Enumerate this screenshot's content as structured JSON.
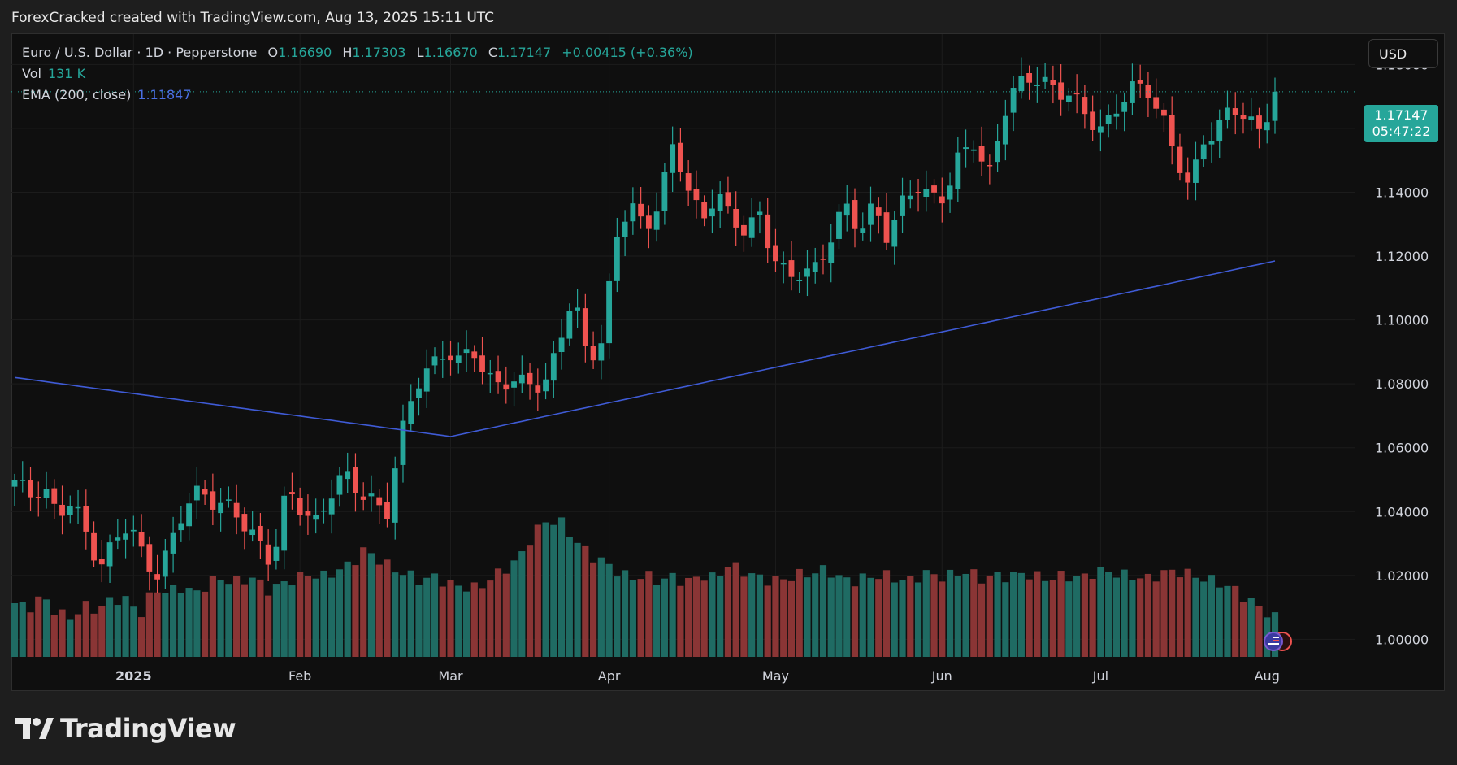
{
  "header": {
    "title": "ForexCracked created with TradingView.com, Aug 13, 2025 15:11 UTC"
  },
  "legend": {
    "symbol": "Euro / U.S. Dollar · 1D · Pepperstone",
    "open_label": "O",
    "open": "1.16690",
    "high_label": "H",
    "high": "1.17303",
    "low_label": "L",
    "low": "1.16670",
    "close_label": "C",
    "close": "1.17147",
    "change": "+0.00415 (+0.36%)",
    "vol_label": "Vol",
    "vol_value": "131 K",
    "ema_label": "EMA (200, close)",
    "ema_value": "1.11847"
  },
  "currency_button": "USD",
  "price_tag": {
    "price": "1.17147",
    "countdown": "05:47:22"
  },
  "brand": {
    "name": "TradingView"
  },
  "colors": {
    "up": "#26a69a",
    "down": "#ef5350",
    "vol_up": "#1f6b63",
    "vol_down": "#8a3535",
    "ema": "#3f5bd6",
    "grid": "#1c1c1c",
    "axis_text": "#d1d4dc",
    "background": "#0f0f0f"
  },
  "chart_data": {
    "type": "candlestick",
    "title": "Euro / U.S. Dollar · 1D · Pepperstone",
    "y_axis_ticks": [
      "1.18000",
      "1.16000",
      "1.14000",
      "1.12000",
      "1.10000",
      "1.08000",
      "1.06000",
      "1.04000",
      "1.02000",
      "1.00000"
    ],
    "y_tick_values": [
      1.18,
      1.16,
      1.14,
      1.12,
      1.1,
      1.08,
      1.06,
      1.04,
      1.02,
      1.0
    ],
    "ylim": [
      0.9945,
      1.1895
    ],
    "x_axis_ticks": [
      "2025",
      "Feb",
      "Mar",
      "Apr",
      "May",
      "Jun",
      "Jul",
      "Aug"
    ],
    "x_tick_bar_index": [
      15,
      36,
      55,
      75,
      96,
      117,
      137,
      158
    ],
    "last_price": 1.17147,
    "ohlc_anchor_closes": [
      1.048,
      1.045,
      1.05,
      1.038,
      1.042,
      1.033,
      1.025,
      1.03,
      1.035,
      1.026,
      1.022,
      1.03,
      1.041,
      1.048,
      1.044,
      1.04,
      1.035,
      1.032,
      1.025,
      1.045,
      1.04,
      1.038,
      1.046,
      1.05,
      1.046,
      1.045,
      1.04,
      1.062,
      1.08,
      1.087,
      1.09,
      1.085,
      1.092,
      1.083,
      1.08,
      1.078,
      1.082,
      1.08,
      1.093,
      1.105,
      1.09,
      1.094,
      1.125,
      1.135,
      1.13,
      1.138,
      1.154,
      1.14,
      1.133,
      1.141,
      1.13,
      1.127,
      1.135,
      1.12,
      1.111,
      1.115,
      1.118,
      1.126,
      1.134,
      1.128,
      1.138,
      1.125,
      1.135,
      1.143,
      1.14,
      1.138,
      1.15,
      1.157,
      1.146,
      1.163,
      1.172,
      1.178,
      1.175,
      1.17,
      1.168,
      1.165,
      1.16,
      1.165,
      1.172,
      1.175,
      1.165,
      1.15,
      1.141,
      1.158,
      1.16,
      1.165,
      1.163,
      1.161,
      1.17147
    ],
    "volume_pattern": [
      55,
      50,
      62,
      45,
      40,
      52,
      48,
      60,
      58,
      44,
      70,
      66,
      72,
      65,
      78,
      80,
      76,
      82,
      68,
      74,
      80,
      85,
      82,
      88,
      95,
      110,
      100,
      90,
      85,
      78,
      82,
      75,
      72,
      70,
      80,
      90,
      100,
      125,
      140,
      138,
      120,
      105,
      98,
      88,
      80,
      84,
      78,
      82,
      76,
      84,
      80,
      95,
      88,
      82,
      78,
      80,
      84,
      86,
      90,
      80,
      78,
      82,
      84,
      80,
      78,
      86,
      82,
      84,
      88,
      80,
      84,
      82,
      86,
      82,
      80,
      84,
      80,
      86,
      88,
      84,
      82,
      80,
      86,
      88,
      84,
      80,
      76,
      70,
      60,
      50,
      40
    ]
  }
}
